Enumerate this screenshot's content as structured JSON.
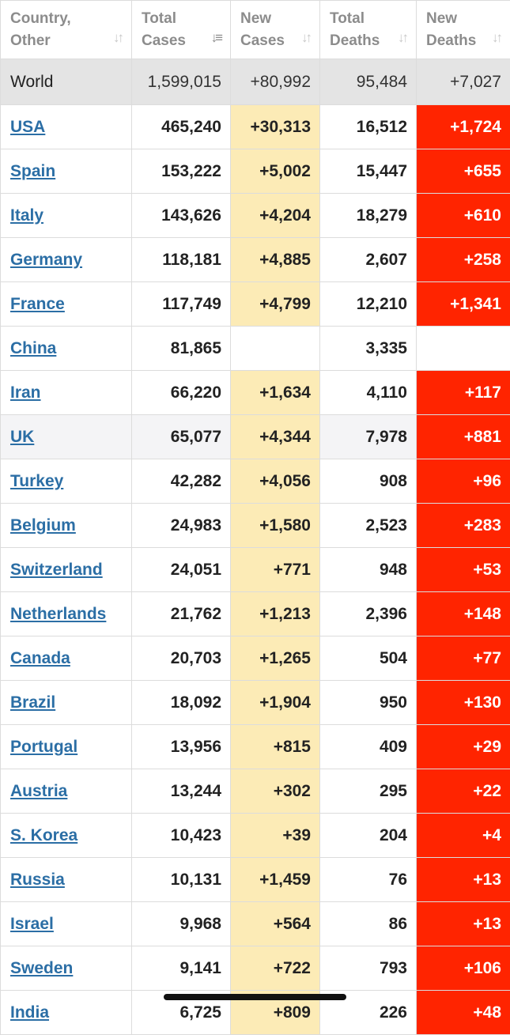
{
  "columns": [
    {
      "label_line1": "Country,",
      "label_line2": "Other",
      "sort_active": false
    },
    {
      "label_line1": "Total",
      "label_line2": "Cases",
      "sort_active": true
    },
    {
      "label_line1": "New",
      "label_line2": "Cases",
      "sort_active": false
    },
    {
      "label_line1": "Total",
      "label_line2": "Deaths",
      "sort_active": false
    },
    {
      "label_line1": "New",
      "label_line2": "Deaths",
      "sort_active": false
    }
  ],
  "world": {
    "country": "World",
    "total_cases": "1,599,015",
    "new_cases": "+80,992",
    "total_deaths": "95,484",
    "new_deaths": "+7,027"
  },
  "rows": [
    {
      "country": "USA",
      "total_cases": "465,240",
      "new_cases": "+30,313",
      "total_deaths": "16,512",
      "new_deaths": "+1,724"
    },
    {
      "country": "Spain",
      "total_cases": "153,222",
      "new_cases": "+5,002",
      "total_deaths": "15,447",
      "new_deaths": "+655"
    },
    {
      "country": "Italy",
      "total_cases": "143,626",
      "new_cases": "+4,204",
      "total_deaths": "18,279",
      "new_deaths": "+610"
    },
    {
      "country": "Germany",
      "total_cases": "118,181",
      "new_cases": "+4,885",
      "total_deaths": "2,607",
      "new_deaths": "+258"
    },
    {
      "country": "France",
      "total_cases": "117,749",
      "new_cases": "+4,799",
      "total_deaths": "12,210",
      "new_deaths": "+1,341"
    },
    {
      "country": "China",
      "total_cases": "81,865",
      "new_cases": "",
      "total_deaths": "3,335",
      "new_deaths": ""
    },
    {
      "country": "Iran",
      "total_cases": "66,220",
      "new_cases": "+1,634",
      "total_deaths": "4,110",
      "new_deaths": "+117"
    },
    {
      "country": "UK",
      "total_cases": "65,077",
      "new_cases": "+4,344",
      "total_deaths": "7,978",
      "new_deaths": "+881"
    },
    {
      "country": "Turkey",
      "total_cases": "42,282",
      "new_cases": "+4,056",
      "total_deaths": "908",
      "new_deaths": "+96"
    },
    {
      "country": "Belgium",
      "total_cases": "24,983",
      "new_cases": "+1,580",
      "total_deaths": "2,523",
      "new_deaths": "+283"
    },
    {
      "country": "Switzerland",
      "total_cases": "24,051",
      "new_cases": "+771",
      "total_deaths": "948",
      "new_deaths": "+53"
    },
    {
      "country": "Netherlands",
      "total_cases": "21,762",
      "new_cases": "+1,213",
      "total_deaths": "2,396",
      "new_deaths": "+148"
    },
    {
      "country": "Canada",
      "total_cases": "20,703",
      "new_cases": "+1,265",
      "total_deaths": "504",
      "new_deaths": "+77"
    },
    {
      "country": "Brazil",
      "total_cases": "18,092",
      "new_cases": "+1,904",
      "total_deaths": "950",
      "new_deaths": "+130"
    },
    {
      "country": "Portugal",
      "total_cases": "13,956",
      "new_cases": "+815",
      "total_deaths": "409",
      "new_deaths": "+29"
    },
    {
      "country": "Austria",
      "total_cases": "13,244",
      "new_cases": "+302",
      "total_deaths": "295",
      "new_deaths": "+22"
    },
    {
      "country": "S. Korea",
      "total_cases": "10,423",
      "new_cases": "+39",
      "total_deaths": "204",
      "new_deaths": "+4"
    },
    {
      "country": "Russia",
      "total_cases": "10,131",
      "new_cases": "+1,459",
      "total_deaths": "76",
      "new_deaths": "+13"
    },
    {
      "country": "Israel",
      "total_cases": "9,968",
      "new_cases": "+564",
      "total_deaths": "86",
      "new_deaths": "+13"
    },
    {
      "country": "Sweden",
      "total_cases": "9,141",
      "new_cases": "+722",
      "total_deaths": "793",
      "new_deaths": "+106"
    },
    {
      "country": "India",
      "total_cases": "6,725",
      "new_cases": "+809",
      "total_deaths": "226",
      "new_deaths": "+48"
    }
  ],
  "colors": {
    "new_cases_highlight": "#fcebb6",
    "new_deaths_highlight": "#ff2400",
    "link": "#2b6ea5",
    "world_row": "#e4e4e4"
  },
  "icons": {
    "sort": "sort-arrows-icon"
  }
}
